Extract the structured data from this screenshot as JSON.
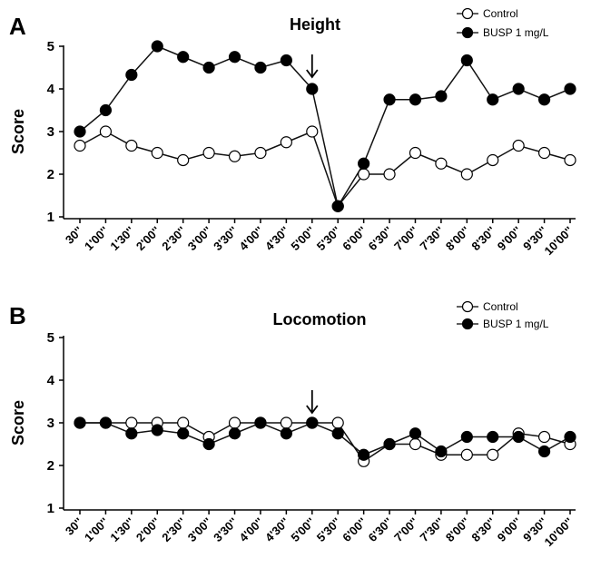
{
  "chart_data": [
    {
      "type": "line",
      "panel_label": "A",
      "title": "Height",
      "ylabel": "Score",
      "xlabel": "",
      "ylim": [
        1,
        5
      ],
      "yticks": [
        "1",
        "2",
        "3",
        "4",
        "5"
      ],
      "categories": [
        "30''",
        "1'00''",
        "1'30''",
        "2'00''",
        "2'30''",
        "3'00''",
        "3'30''",
        "4'00''",
        "4'30''",
        "5'00''",
        "5'30''",
        "6'00''",
        "6'30''",
        "7'00''",
        "7'30''",
        "8'00''",
        "8'30''",
        "9'00''",
        "9'30''",
        "10'00''"
      ],
      "series": [
        {
          "name": "Control",
          "marker": "open-circle",
          "values": [
            2.67,
            3.0,
            2.67,
            2.5,
            2.33,
            2.5,
            2.42,
            2.5,
            2.75,
            3.0,
            1.25,
            2.0,
            2.0,
            2.5,
            2.25,
            2.0,
            2.33,
            2.67,
            2.5,
            2.33
          ]
        },
        {
          "name": "BUSP 1 mg/L",
          "marker": "filled-circle",
          "values": [
            3.0,
            3.5,
            4.33,
            5.0,
            4.75,
            4.5,
            4.75,
            4.5,
            4.67,
            4.0,
            1.25,
            2.25,
            3.75,
            3.75,
            3.83,
            4.67,
            3.75,
            4.0,
            3.75,
            4.0
          ]
        }
      ],
      "arrow_at": "5'00''",
      "legend_position": "top-right",
      "grid": false
    },
    {
      "type": "line",
      "panel_label": "B",
      "title": "Locomotion",
      "ylabel": "Score",
      "xlabel": "",
      "ylim": [
        1,
        5
      ],
      "yticks": [
        "1",
        "2",
        "3",
        "4",
        "5"
      ],
      "categories": [
        "30''",
        "1'00''",
        "1'30''",
        "2'00''",
        "2'30''",
        "3'00''",
        "3'30''",
        "4'00''",
        "4'30''",
        "5'00''",
        "5'30''",
        "6'00''",
        "6'30''",
        "7'00''",
        "7'30''",
        "8'00''",
        "8'30''",
        "9'00''",
        "9'30''",
        "10'00''"
      ],
      "series": [
        {
          "name": "Control",
          "marker": "open-circle",
          "values": [
            3.0,
            3.0,
            3.0,
            3.0,
            3.0,
            2.67,
            3.0,
            3.0,
            3.0,
            3.0,
            3.0,
            2.1,
            2.5,
            2.5,
            2.25,
            2.25,
            2.25,
            2.75,
            2.67,
            2.5
          ]
        },
        {
          "name": "BUSP 1 mg/L",
          "marker": "filled-circle",
          "values": [
            3.0,
            3.0,
            2.75,
            2.83,
            2.75,
            2.5,
            2.75,
            3.0,
            2.75,
            3.0,
            2.75,
            2.25,
            2.5,
            2.75,
            2.33,
            2.67,
            2.67,
            2.67,
            2.33,
            2.67
          ]
        }
      ],
      "arrow_at": "5'00''",
      "legend_position": "top-right",
      "grid": false
    }
  ]
}
